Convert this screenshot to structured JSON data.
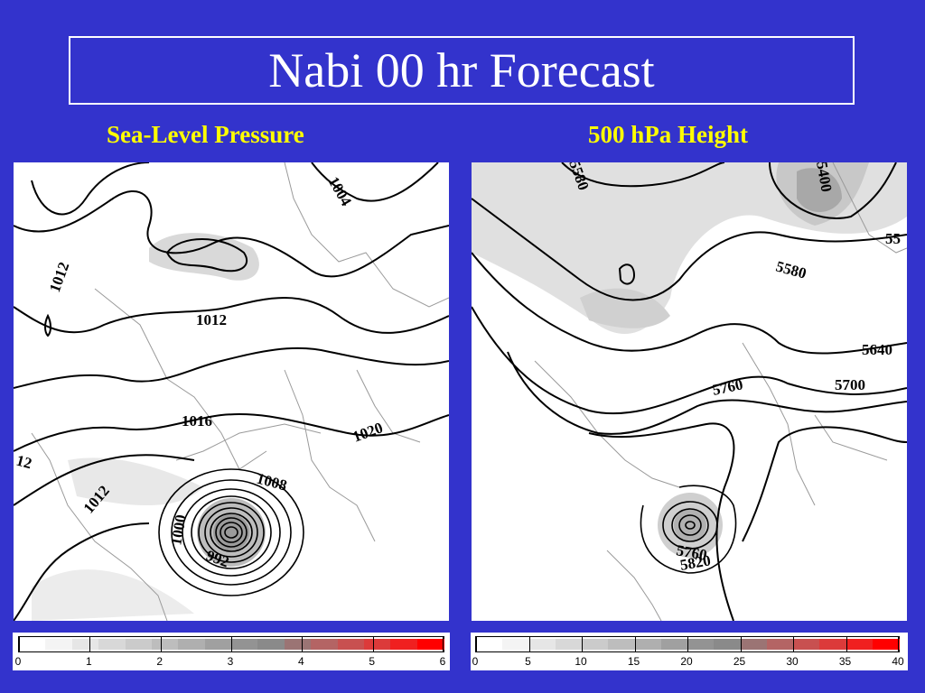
{
  "slide": {
    "title": "Nabi 00 hr Forecast",
    "background_color": "#3333cc",
    "title_color": "#ffffff",
    "subtitle_color": "#ffff00"
  },
  "panels": [
    {
      "heading": "Sea-Level Pressure",
      "contour_labels": [
        "1004",
        "1012",
        "1012",
        "1016",
        "1020",
        "1008",
        "1012",
        "1000",
        "992",
        "12"
      ],
      "colorbar": {
        "ticks": [
          "0",
          "1",
          "2",
          "3",
          "4",
          "5",
          "6"
        ],
        "colors": [
          "#ffffff",
          "#f4f4f4",
          "#e6e6e6",
          "#d8d8d8",
          "#cbcbcb",
          "#bdbdbd",
          "#afafaf",
          "#a0a0a0",
          "#939393",
          "#8a8a8a",
          "#9b7474",
          "#b46464",
          "#c85050",
          "#dc3a3a",
          "#f02020",
          "#ff0000"
        ]
      }
    },
    {
      "heading": "500 hPa Height",
      "contour_labels": [
        "5580",
        "5400",
        "5580",
        "5640",
        "5700",
        "5760",
        "5760",
        "5820",
        "55"
      ],
      "colorbar": {
        "ticks": [
          "0",
          "5",
          "10",
          "15",
          "20",
          "25",
          "30",
          "35",
          "40"
        ],
        "colors": [
          "#ffffff",
          "#f4f4f4",
          "#e6e6e6",
          "#d8d8d8",
          "#cbcbcb",
          "#bdbdbd",
          "#afafaf",
          "#a0a0a0",
          "#939393",
          "#8a8a8a",
          "#9b7474",
          "#b46464",
          "#c85050",
          "#dc3a3a",
          "#f02020",
          "#ff0000"
        ]
      }
    }
  ]
}
